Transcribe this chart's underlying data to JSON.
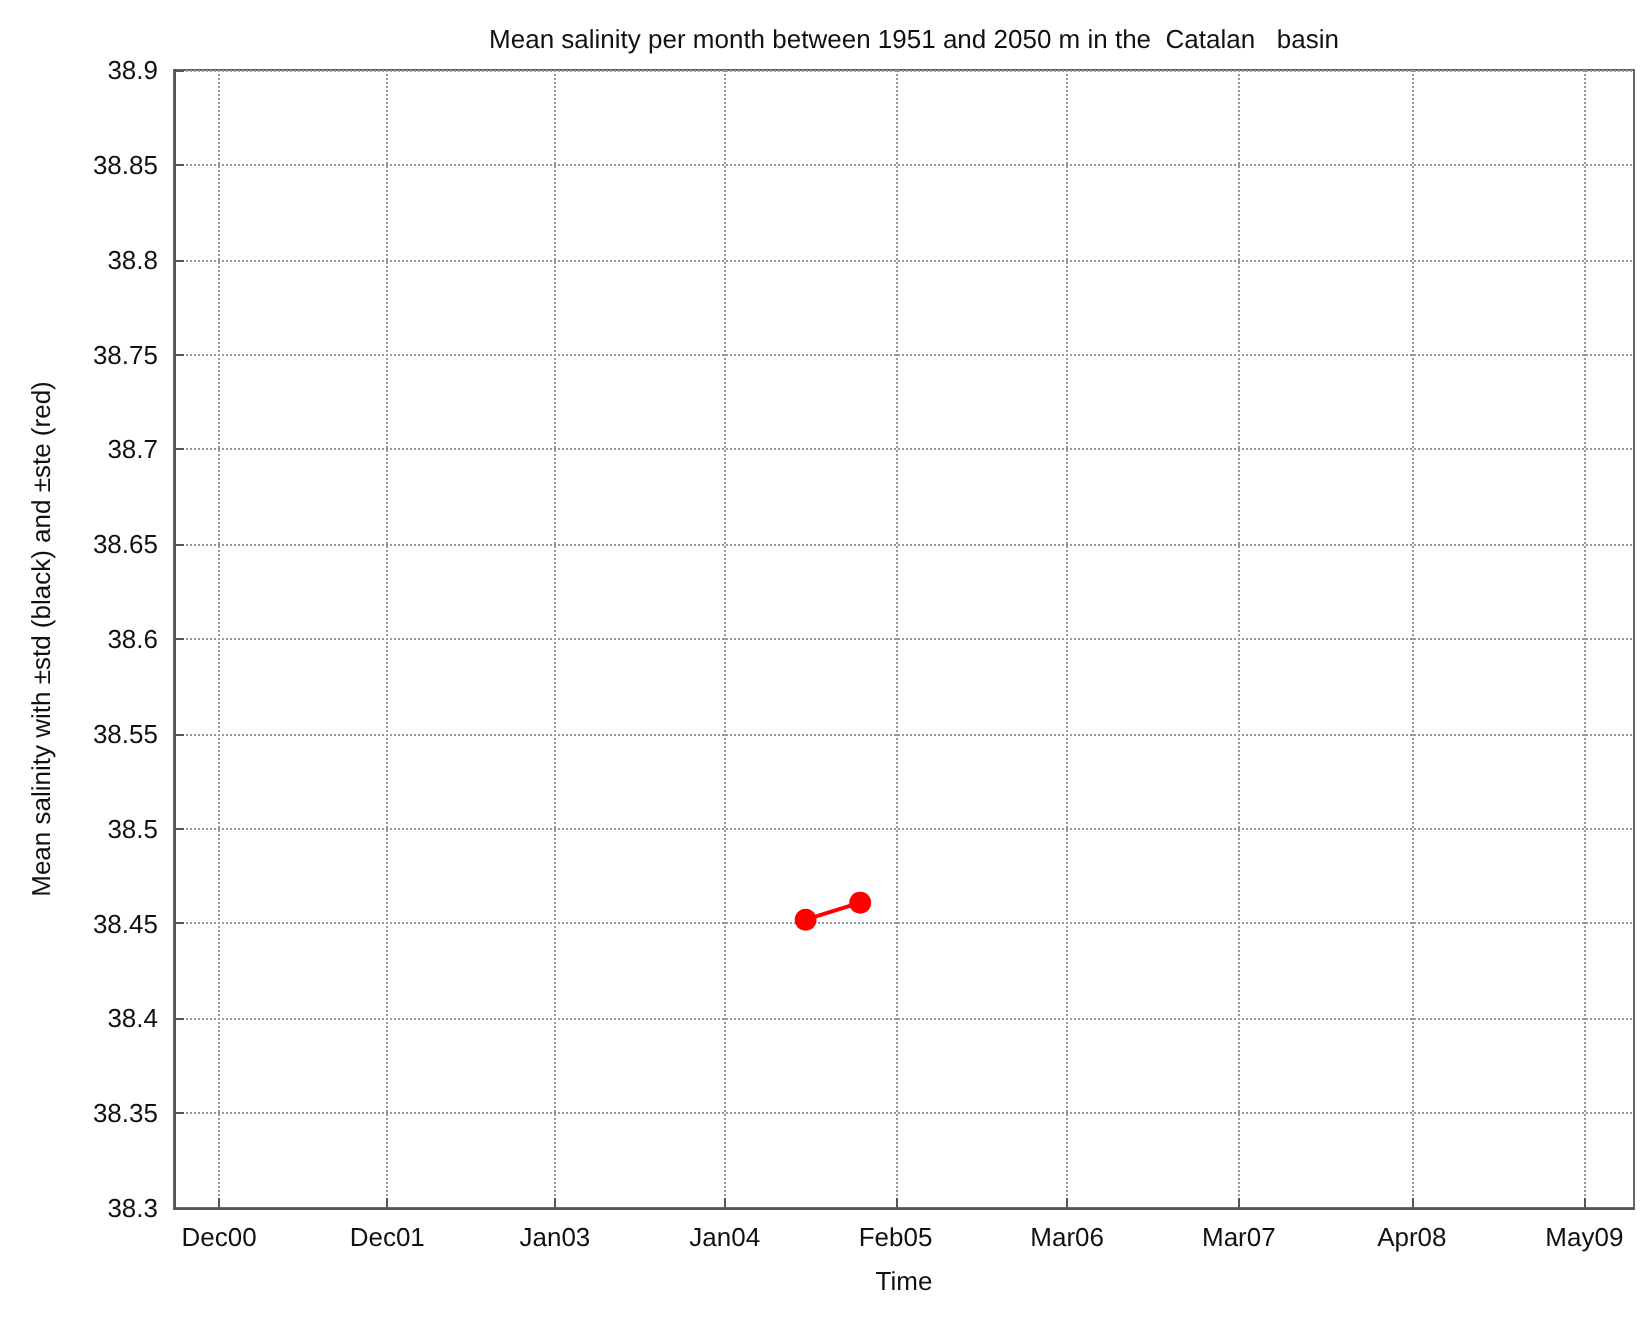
{
  "chart_data": {
    "type": "line",
    "title": "Mean salinity per month between 1951 and 2050 m in the  Catalan   basin",
    "xlabel": "Time",
    "ylabel": "Mean salinity with ±std (black) and ±ste (red)",
    "series": [
      {
        "color": "#ff0000",
        "x": [
          "2004-07-24",
          "2004-11-23"
        ],
        "values": [
          38.452,
          38.461
        ]
      }
    ],
    "xlim": [
      "2000-09-10",
      "2009-08-20"
    ],
    "xticks": [
      {
        "value": "2000-12-20",
        "label": "Dec00"
      },
      {
        "value": "2001-12-31",
        "label": "Dec01"
      },
      {
        "value": "2003-01-10",
        "label": "Jan03"
      },
      {
        "value": "2004-01-25",
        "label": "Jan04"
      },
      {
        "value": "2005-02-10",
        "label": "Feb05"
      },
      {
        "value": "2006-03-01",
        "label": "Mar06"
      },
      {
        "value": "2007-03-20",
        "label": "Mar07"
      },
      {
        "value": "2008-04-10",
        "label": "Apr08"
      },
      {
        "value": "2009-05-01",
        "label": "May09"
      }
    ],
    "ylim": [
      38.3,
      38.9
    ],
    "yticks": [
      38.3,
      38.35,
      38.4,
      38.45,
      38.5,
      38.55,
      38.6,
      38.65,
      38.7,
      38.75,
      38.8,
      38.85,
      38.9
    ],
    "grid": true,
    "marker": "circle",
    "line_style": "solid"
  }
}
